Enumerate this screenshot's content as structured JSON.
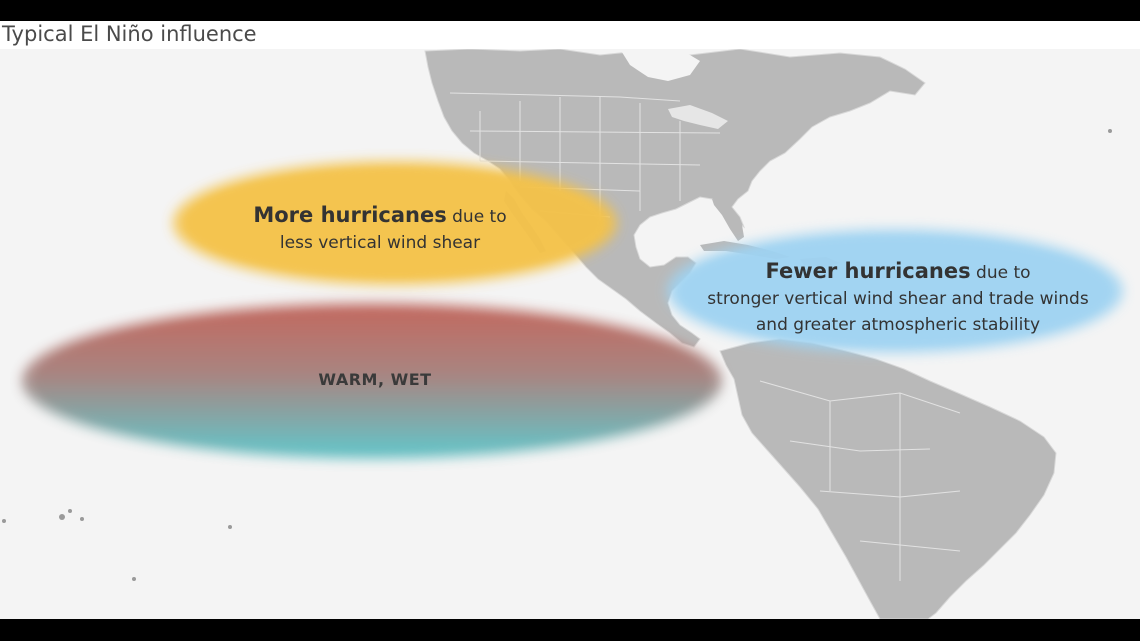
{
  "title": "Typical El Niño influence",
  "regions": {
    "atlantic": {
      "strong": "Fewer hurricanes",
      "rest": " due to",
      "line2": "stronger vertical wind shear and trade winds",
      "line3": "and greater atmospheric stability",
      "color": "#9fd3f2"
    },
    "pacific_north": {
      "strong": "More hurricanes",
      "rest": " due to",
      "line2": "less vertical wind shear",
      "color": "#f4c24a"
    },
    "equatorial_pacific": {
      "label": "WARM, WET",
      "color_top": "#c0645a",
      "color_bottom": "#5fc2c6"
    }
  },
  "colors": {
    "background": "#f4f4f4",
    "land": "#b9b9b9",
    "borders": "#ffffff"
  }
}
